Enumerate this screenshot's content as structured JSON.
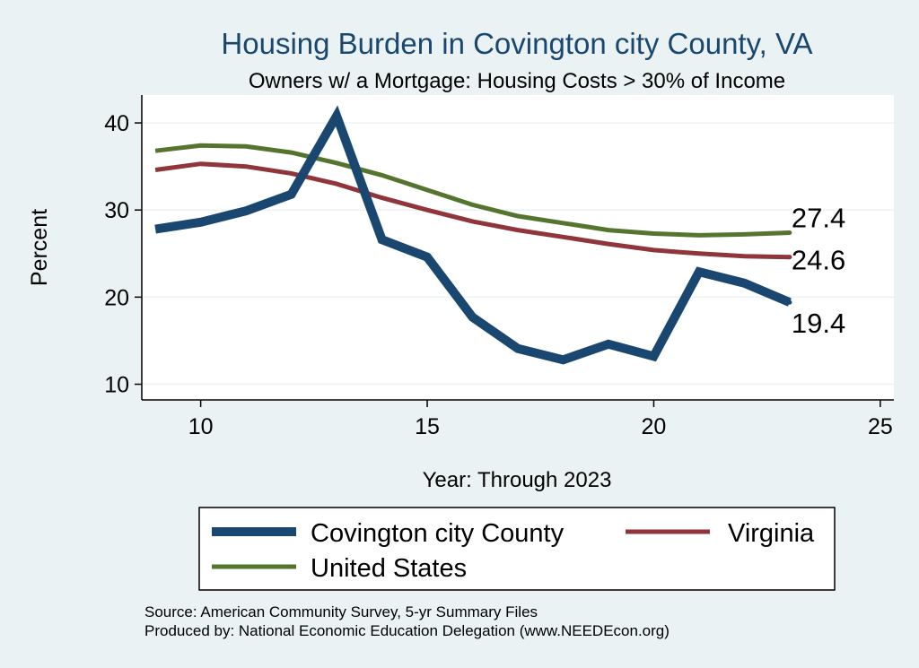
{
  "chart_data": {
    "type": "line",
    "title": "Housing Burden in Covington city County, VA",
    "subtitle": "Owners w/ a Mortgage: Housing Costs > 30% of Income",
    "xlabel": "Year: Through 2023",
    "ylabel": "Percent",
    "xlim": [
      8.7,
      25.3
    ],
    "ylim": [
      8.2,
      43.2
    ],
    "xticks": [
      10,
      15,
      20,
      25
    ],
    "yticks": [
      10,
      20,
      30,
      40
    ],
    "grid": true,
    "legend_position": "bottom",
    "series": [
      {
        "name": "Covington city County",
        "color": "#1a476f",
        "x": [
          9,
          10,
          11,
          12,
          13,
          14,
          15,
          16,
          17,
          18,
          19,
          20,
          21,
          22,
          23
        ],
        "y": [
          27.8,
          28.6,
          29.9,
          31.8,
          40.8,
          26.6,
          24.6,
          17.7,
          14.1,
          12.8,
          14.6,
          13.2,
          22.9,
          21.6,
          19.4
        ],
        "end_label": "19.4"
      },
      {
        "name": "Virginia",
        "color": "#90353b",
        "x": [
          9,
          10,
          11,
          12,
          13,
          14,
          15,
          16,
          17,
          18,
          19,
          20,
          21,
          22,
          23
        ],
        "y": [
          34.6,
          35.3,
          35.0,
          34.2,
          33.0,
          31.4,
          30.0,
          28.7,
          27.7,
          26.9,
          26.1,
          25.4,
          25.0,
          24.7,
          24.6
        ],
        "end_label": "24.6"
      },
      {
        "name": "United States",
        "color": "#55752f",
        "x": [
          9,
          10,
          11,
          12,
          13,
          14,
          15,
          16,
          17,
          18,
          19,
          20,
          21,
          22,
          23
        ],
        "y": [
          36.8,
          37.4,
          37.3,
          36.6,
          35.4,
          34.0,
          32.3,
          30.6,
          29.3,
          28.5,
          27.7,
          27.3,
          27.1,
          27.2,
          27.4
        ],
        "end_label": "27.4"
      }
    ],
    "legend_entries": [
      "Covington city County",
      "Virginia",
      "United States"
    ]
  },
  "source_note": "Source: American Community Survey, 5-yr Summary Files",
  "producer_note": "Produced by: National Economic Education Delegation (www.NEEDEcon.org)",
  "colors": {
    "background": "#eaf2f3",
    "plot_background": "#ffffff",
    "grid": "#eaf2f3"
  }
}
